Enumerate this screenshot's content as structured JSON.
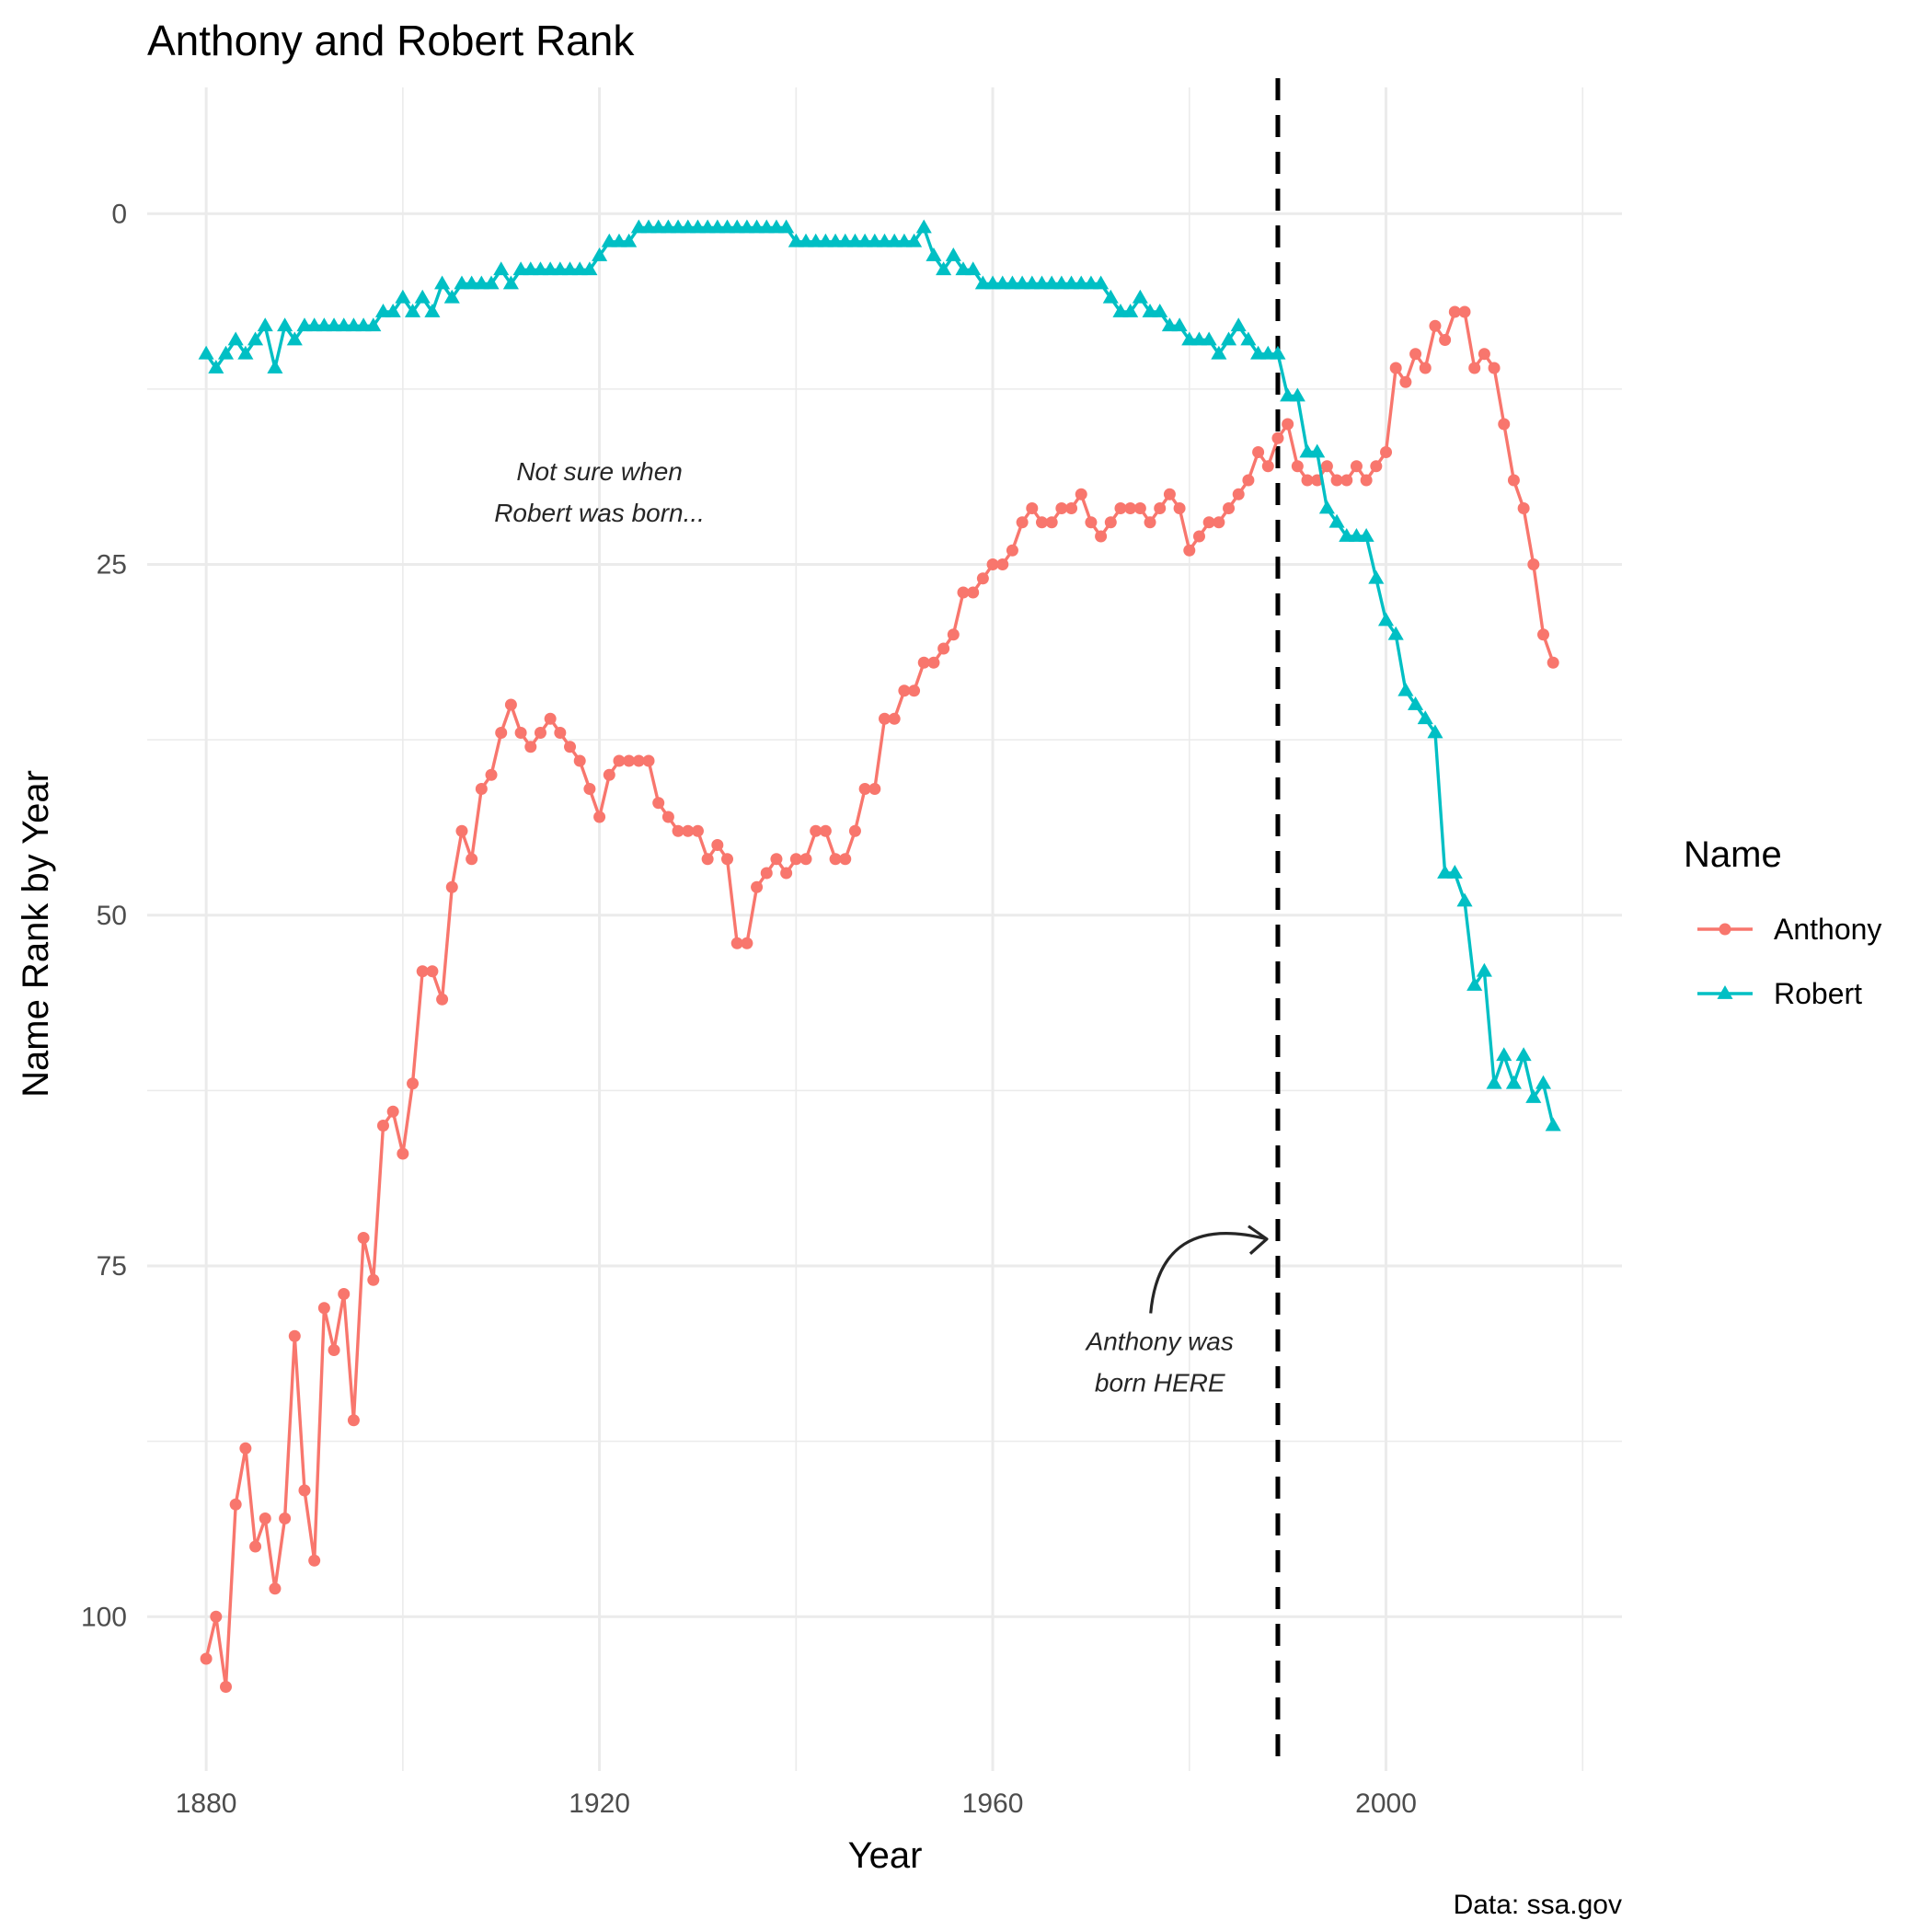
{
  "chart_data": {
    "type": "line",
    "title": "Anthony and Robert Rank",
    "xlabel": "Year",
    "ylabel": "Name Rank by Year",
    "caption": "Data: ssa.gov",
    "xlim": [
      1874,
      2024
    ],
    "ylim": [
      -9,
      111
    ],
    "y_reversed": true,
    "x_ticks": [
      1880,
      1920,
      1960,
      2000
    ],
    "y_ticks": [
      0,
      25,
      50,
      75,
      100
    ],
    "grid": true,
    "legend": {
      "title": "Name",
      "position": "right"
    },
    "reference_line": {
      "x": 1989,
      "style": "dashed",
      "color": "#000000"
    },
    "annotations": [
      {
        "lines": [
          "Not sure when",
          "Robert was born..."
        ],
        "x": 1920,
        "y": 19
      },
      {
        "lines": [
          "Anthony was",
          "born HERE"
        ],
        "x": 1977,
        "y": 81,
        "arrow_to": {
          "x": 1989,
          "y": 74
        }
      }
    ],
    "series": [
      {
        "name": "Anthony",
        "color": "#F8766D",
        "marker": "circle",
        "points": [
          [
            1880,
            103
          ],
          [
            1881,
            100
          ],
          [
            1882,
            105
          ],
          [
            1883,
            92
          ],
          [
            1884,
            88
          ],
          [
            1885,
            95
          ],
          [
            1886,
            93
          ],
          [
            1887,
            98
          ],
          [
            1888,
            93
          ],
          [
            1889,
            80
          ],
          [
            1890,
            91
          ],
          [
            1891,
            96
          ],
          [
            1892,
            78
          ],
          [
            1893,
            81
          ],
          [
            1894,
            77
          ],
          [
            1895,
            86
          ],
          [
            1896,
            73
          ],
          [
            1897,
            76
          ],
          [
            1898,
            65
          ],
          [
            1899,
            64
          ],
          [
            1900,
            67
          ],
          [
            1901,
            62
          ],
          [
            1902,
            54
          ],
          [
            1903,
            54
          ],
          [
            1904,
            56
          ],
          [
            1905,
            48
          ],
          [
            1906,
            44
          ],
          [
            1907,
            46
          ],
          [
            1908,
            41
          ],
          [
            1909,
            40
          ],
          [
            1910,
            37
          ],
          [
            1911,
            35
          ],
          [
            1912,
            37
          ],
          [
            1913,
            38
          ],
          [
            1914,
            37
          ],
          [
            1915,
            36
          ],
          [
            1916,
            37
          ],
          [
            1917,
            38
          ],
          [
            1918,
            39
          ],
          [
            1919,
            41
          ],
          [
            1920,
            43
          ],
          [
            1921,
            40
          ],
          [
            1922,
            39
          ],
          [
            1923,
            39
          ],
          [
            1924,
            39
          ],
          [
            1925,
            39
          ],
          [
            1926,
            42
          ],
          [
            1927,
            43
          ],
          [
            1928,
            44
          ],
          [
            1929,
            44
          ],
          [
            1930,
            44
          ],
          [
            1931,
            46
          ],
          [
            1932,
            45
          ],
          [
            1933,
            46
          ],
          [
            1934,
            52
          ],
          [
            1935,
            52
          ],
          [
            1936,
            48
          ],
          [
            1937,
            47
          ],
          [
            1938,
            46
          ],
          [
            1939,
            47
          ],
          [
            1940,
            46
          ],
          [
            1941,
            46
          ],
          [
            1942,
            44
          ],
          [
            1943,
            44
          ],
          [
            1944,
            46
          ],
          [
            1945,
            46
          ],
          [
            1946,
            44
          ],
          [
            1947,
            41
          ],
          [
            1948,
            41
          ],
          [
            1949,
            36
          ],
          [
            1950,
            36
          ],
          [
            1951,
            34
          ],
          [
            1952,
            34
          ],
          [
            1953,
            32
          ],
          [
            1954,
            32
          ],
          [
            1955,
            31
          ],
          [
            1956,
            30
          ],
          [
            1957,
            27
          ],
          [
            1958,
            27
          ],
          [
            1959,
            26
          ],
          [
            1960,
            25
          ],
          [
            1961,
            25
          ],
          [
            1962,
            24
          ],
          [
            1963,
            22
          ],
          [
            1964,
            21
          ],
          [
            1965,
            22
          ],
          [
            1966,
            22
          ],
          [
            1967,
            21
          ],
          [
            1968,
            21
          ],
          [
            1969,
            20
          ],
          [
            1970,
            22
          ],
          [
            1971,
            23
          ],
          [
            1972,
            22
          ],
          [
            1973,
            21
          ],
          [
            1974,
            21
          ],
          [
            1975,
            21
          ],
          [
            1976,
            22
          ],
          [
            1977,
            21
          ],
          [
            1978,
            20
          ],
          [
            1979,
            21
          ],
          [
            1980,
            24
          ],
          [
            1981,
            23
          ],
          [
            1982,
            22
          ],
          [
            1983,
            22
          ],
          [
            1984,
            21
          ],
          [
            1985,
            20
          ],
          [
            1986,
            19
          ],
          [
            1987,
            17
          ],
          [
            1988,
            18
          ],
          [
            1989,
            16
          ],
          [
            1990,
            15
          ],
          [
            1991,
            18
          ],
          [
            1992,
            19
          ],
          [
            1993,
            19
          ],
          [
            1994,
            18
          ],
          [
            1995,
            19
          ],
          [
            1996,
            19
          ],
          [
            1997,
            18
          ],
          [
            1998,
            19
          ],
          [
            1999,
            18
          ],
          [
            2000,
            17
          ],
          [
            2001,
            11
          ],
          [
            2002,
            12
          ],
          [
            2003,
            10
          ],
          [
            2004,
            11
          ],
          [
            2005,
            8
          ],
          [
            2006,
            9
          ],
          [
            2007,
            7
          ],
          [
            2008,
            7
          ],
          [
            2009,
            11
          ],
          [
            2010,
            10
          ],
          [
            2011,
            11
          ],
          [
            2012,
            15
          ],
          [
            2013,
            19
          ],
          [
            2014,
            21
          ],
          [
            2015,
            25
          ],
          [
            2016,
            30
          ],
          [
            2017,
            32
          ]
        ]
      },
      {
        "name": "Robert",
        "color": "#00BFC4",
        "marker": "triangle",
        "points": [
          [
            1880,
            10
          ],
          [
            1881,
            11
          ],
          [
            1882,
            10
          ],
          [
            1883,
            9
          ],
          [
            1884,
            10
          ],
          [
            1885,
            9
          ],
          [
            1886,
            8
          ],
          [
            1887,
            11
          ],
          [
            1888,
            8
          ],
          [
            1889,
            9
          ],
          [
            1890,
            8
          ],
          [
            1891,
            8
          ],
          [
            1892,
            8
          ],
          [
            1893,
            8
          ],
          [
            1894,
            8
          ],
          [
            1895,
            8
          ],
          [
            1896,
            8
          ],
          [
            1897,
            8
          ],
          [
            1898,
            7
          ],
          [
            1899,
            7
          ],
          [
            1900,
            6
          ],
          [
            1901,
            7
          ],
          [
            1902,
            6
          ],
          [
            1903,
            7
          ],
          [
            1904,
            5
          ],
          [
            1905,
            6
          ],
          [
            1906,
            5
          ],
          [
            1907,
            5
          ],
          [
            1908,
            5
          ],
          [
            1909,
            5
          ],
          [
            1910,
            4
          ],
          [
            1911,
            5
          ],
          [
            1912,
            4
          ],
          [
            1913,
            4
          ],
          [
            1914,
            4
          ],
          [
            1915,
            4
          ],
          [
            1916,
            4
          ],
          [
            1917,
            4
          ],
          [
            1918,
            4
          ],
          [
            1919,
            4
          ],
          [
            1920,
            3
          ],
          [
            1921,
            2
          ],
          [
            1922,
            2
          ],
          [
            1923,
            2
          ],
          [
            1924,
            1
          ],
          [
            1925,
            1
          ],
          [
            1926,
            1
          ],
          [
            1927,
            1
          ],
          [
            1928,
            1
          ],
          [
            1929,
            1
          ],
          [
            1930,
            1
          ],
          [
            1931,
            1
          ],
          [
            1932,
            1
          ],
          [
            1933,
            1
          ],
          [
            1934,
            1
          ],
          [
            1935,
            1
          ],
          [
            1936,
            1
          ],
          [
            1937,
            1
          ],
          [
            1938,
            1
          ],
          [
            1939,
            1
          ],
          [
            1940,
            2
          ],
          [
            1941,
            2
          ],
          [
            1942,
            2
          ],
          [
            1943,
            2
          ],
          [
            1944,
            2
          ],
          [
            1945,
            2
          ],
          [
            1946,
            2
          ],
          [
            1947,
            2
          ],
          [
            1948,
            2
          ],
          [
            1949,
            2
          ],
          [
            1950,
            2
          ],
          [
            1951,
            2
          ],
          [
            1952,
            2
          ],
          [
            1953,
            1
          ],
          [
            1954,
            3
          ],
          [
            1955,
            4
          ],
          [
            1956,
            3
          ],
          [
            1957,
            4
          ],
          [
            1958,
            4
          ],
          [
            1959,
            5
          ],
          [
            1960,
            5
          ],
          [
            1961,
            5
          ],
          [
            1962,
            5
          ],
          [
            1963,
            5
          ],
          [
            1964,
            5
          ],
          [
            1965,
            5
          ],
          [
            1966,
            5
          ],
          [
            1967,
            5
          ],
          [
            1968,
            5
          ],
          [
            1969,
            5
          ],
          [
            1970,
            5
          ],
          [
            1971,
            5
          ],
          [
            1972,
            6
          ],
          [
            1973,
            7
          ],
          [
            1974,
            7
          ],
          [
            1975,
            6
          ],
          [
            1976,
            7
          ],
          [
            1977,
            7
          ],
          [
            1978,
            8
          ],
          [
            1979,
            8
          ],
          [
            1980,
            9
          ],
          [
            1981,
            9
          ],
          [
            1982,
            9
          ],
          [
            1983,
            10
          ],
          [
            1984,
            9
          ],
          [
            1985,
            8
          ],
          [
            1986,
            9
          ],
          [
            1987,
            10
          ],
          [
            1988,
            10
          ],
          [
            1989,
            10
          ],
          [
            1990,
            13
          ],
          [
            1991,
            13
          ],
          [
            1992,
            17
          ],
          [
            1993,
            17
          ],
          [
            1994,
            21
          ],
          [
            1995,
            22
          ],
          [
            1996,
            23
          ],
          [
            1997,
            23
          ],
          [
            1998,
            23
          ],
          [
            1999,
            26
          ],
          [
            2000,
            29
          ],
          [
            2001,
            30
          ],
          [
            2002,
            34
          ],
          [
            2003,
            35
          ],
          [
            2004,
            36
          ],
          [
            2005,
            37
          ],
          [
            2006,
            47
          ],
          [
            2007,
            47
          ],
          [
            2008,
            49
          ],
          [
            2009,
            55
          ],
          [
            2010,
            54
          ],
          [
            2011,
            62
          ],
          [
            2012,
            60
          ],
          [
            2013,
            62
          ],
          [
            2014,
            60
          ],
          [
            2015,
            63
          ],
          [
            2016,
            62
          ],
          [
            2017,
            65
          ]
        ]
      }
    ]
  }
}
